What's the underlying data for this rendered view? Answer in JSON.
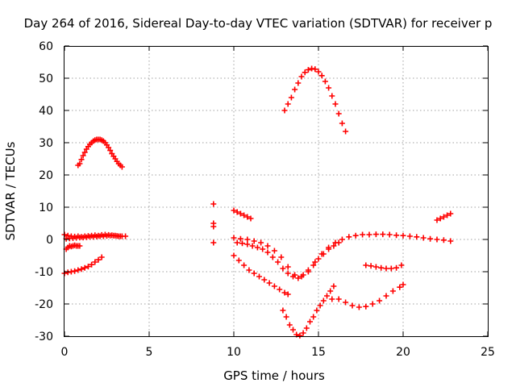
{
  "chart_data": {
    "type": "scatter",
    "title": "Day 264 of 2016, Sidereal Day-to-day VTEC variation (SDTVAR) for receiver p",
    "xlabel": "GPS time / hours",
    "ylabel": "SDTVAR / TECUs",
    "xlim": [
      0,
      25
    ],
    "ylim": [
      -30,
      60
    ],
    "x_ticks": [
      "0",
      "5",
      "10",
      "15",
      "20",
      "25"
    ],
    "y_ticks": [
      "60",
      "50",
      "40",
      "30",
      "20",
      "10",
      "0",
      "-10",
      "-20",
      "-30"
    ],
    "grid": true,
    "legend": "none",
    "marker": "plus",
    "color": "#ff0000",
    "series": [
      {
        "x": [
          0.0,
          0.2,
          0.4,
          0.6,
          0.8,
          1.0,
          1.2,
          1.4,
          1.6,
          1.8,
          2.0,
          2.2,
          2.4,
          2.6,
          2.8,
          3.0,
          3.2,
          3.4,
          3.6,
          0.1,
          0.3,
          0.5,
          0.7,
          0.9,
          1.1,
          1.3,
          1.5,
          1.7,
          1.9,
          2.1,
          2.3,
          2.5,
          2.7,
          2.9,
          3.1,
          3.3
        ],
        "y": [
          1.5,
          1.2,
          1.0,
          0.9,
          1.0,
          0.8,
          1.0,
          1.1,
          1.2,
          1.3,
          1.2,
          1.4,
          1.5,
          1.4,
          1.3,
          1.2,
          1.0,
          1.0,
          1.0,
          0.2,
          0.3,
          0.4,
          0.5,
          0.6,
          0.6,
          0.7,
          0.8,
          0.8,
          0.9,
          1.0,
          1.0,
          1.1,
          1.2,
          1.2,
          1.1,
          1.0
        ]
      },
      {
        "x": [
          0.1,
          0.2,
          0.3,
          0.4,
          0.5,
          0.6,
          0.7,
          0.8,
          0.9
        ],
        "y": [
          -3.0,
          -2.5,
          -2.0,
          -2.2,
          -2.0,
          -1.8,
          -2.0,
          -2.0,
          -2.0
        ]
      },
      {
        "x": [
          0.8,
          0.9,
          1.0,
          1.1,
          1.2,
          1.3,
          1.4,
          1.5,
          1.6,
          1.7,
          1.8,
          1.9,
          2.0,
          2.1,
          2.2,
          2.3,
          2.4,
          2.5,
          2.6,
          2.7,
          2.8,
          2.9,
          3.0,
          3.1,
          3.2,
          3.3,
          3.4
        ],
        "y": [
          23.0,
          23.5,
          24.8,
          26.0,
          27.0,
          28.0,
          28.8,
          29.5,
          30.0,
          30.5,
          30.8,
          31.0,
          31.0,
          31.0,
          30.8,
          30.5,
          30.0,
          29.3,
          28.5,
          27.6,
          26.6,
          25.8,
          25.0,
          24.2,
          23.5,
          23.0,
          22.5
        ]
      },
      {
        "x": [
          0.0,
          0.2,
          0.4,
          0.6,
          0.8,
          1.0,
          1.2,
          1.4,
          1.6,
          1.8,
          2.0,
          2.2
        ],
        "y": [
          -10.5,
          -10.2,
          -10.0,
          -9.8,
          -9.5,
          -9.2,
          -8.8,
          -8.4,
          -7.8,
          -7.0,
          -6.3,
          -5.5
        ]
      },
      {
        "x": [
          8.8,
          8.8,
          8.8,
          8.8
        ],
        "y": [
          11.0,
          5.0,
          4.0,
          -1.0
        ]
      },
      {
        "x": [
          10.0,
          10.2,
          10.4,
          10.6,
          10.8,
          11.0
        ],
        "y": [
          9.0,
          8.5,
          8.0,
          7.5,
          7.0,
          6.5
        ]
      },
      {
        "x": [
          13.0,
          13.2,
          13.4,
          13.6,
          13.8,
          14.0,
          14.2,
          14.4,
          14.6,
          14.8,
          15.0,
          15.2,
          15.4,
          15.6,
          15.8,
          16.0,
          16.2,
          16.4,
          16.6
        ],
        "y": [
          40.0,
          42.0,
          44.0,
          46.5,
          48.5,
          50.5,
          51.8,
          52.6,
          53.0,
          52.8,
          52.0,
          50.8,
          49.0,
          47.0,
          44.5,
          42.0,
          39.0,
          36.0,
          33.5
        ]
      },
      {
        "x": [
          10.0,
          10.4,
          10.8,
          11.2,
          11.6,
          12.0,
          12.4,
          12.8,
          13.2,
          13.6,
          14.0,
          14.4,
          14.8,
          15.2,
          15.6,
          16.0,
          16.4,
          16.8,
          17.2,
          17.6,
          18.0,
          18.4,
          18.8,
          19.2,
          19.6,
          20.0,
          20.4,
          20.8,
          21.2,
          21.6,
          22.0,
          22.4,
          22.8
        ],
        "y": [
          0.5,
          0.2,
          0.0,
          -0.5,
          -1.0,
          -2.0,
          -3.5,
          -5.5,
          -8.5,
          -11.0,
          -11.5,
          -10.0,
          -7.0,
          -4.5,
          -2.5,
          -1.0,
          0.0,
          0.8,
          1.2,
          1.5,
          1.5,
          1.6,
          1.6,
          1.5,
          1.3,
          1.2,
          1.0,
          0.8,
          0.5,
          0.2,
          0.0,
          -0.2,
          -0.5
        ]
      },
      {
        "x": [
          10.2,
          10.5,
          10.8,
          11.1,
          11.4,
          11.7,
          12.0,
          12.3,
          12.6,
          12.9,
          13.2,
          13.5,
          13.8,
          14.1,
          14.4,
          14.7,
          15.0,
          15.3,
          15.6,
          15.9,
          16.2
        ],
        "y": [
          -1.0,
          -1.2,
          -1.5,
          -2.0,
          -2.5,
          -3.0,
          -4.0,
          -5.5,
          -7.0,
          -9.0,
          -10.5,
          -11.5,
          -12.0,
          -11.0,
          -9.5,
          -8.0,
          -6.0,
          -4.5,
          -3.0,
          -2.0,
          -1.0
        ]
      },
      {
        "x": [
          10.0,
          10.3,
          10.6,
          10.9,
          11.2,
          11.5,
          11.8,
          12.1,
          12.4,
          12.7,
          13.0,
          13.2
        ],
        "y": [
          -5.0,
          -6.5,
          -8.0,
          -9.5,
          -10.5,
          -11.5,
          -12.5,
          -13.5,
          -14.5,
          -15.5,
          -16.5,
          -17.0
        ]
      },
      {
        "x": [
          12.9,
          13.1,
          13.3,
          13.5,
          13.7,
          13.9,
          14.1,
          14.3,
          14.5,
          14.7,
          14.9,
          15.1,
          15.3,
          15.5,
          15.7,
          15.9
        ],
        "y": [
          -22.0,
          -24.0,
          -26.5,
          -28.0,
          -29.5,
          -29.8,
          -29.0,
          -27.5,
          -25.5,
          -24.0,
          -22.0,
          -20.5,
          -19.0,
          -17.5,
          -16.0,
          -14.5
        ]
      },
      {
        "x": [
          15.8,
          16.2,
          16.6,
          17.0,
          17.4,
          17.8,
          18.2,
          18.6,
          19.0,
          19.4,
          19.8,
          20.0
        ],
        "y": [
          -18.5,
          -18.5,
          -19.5,
          -20.5,
          -21.0,
          -20.8,
          -20.0,
          -19.0,
          -17.5,
          -16.0,
          -14.8,
          -14.0
        ]
      },
      {
        "x": [
          17.8,
          18.1,
          18.4,
          18.7,
          19.0,
          19.3,
          19.6,
          19.9
        ],
        "y": [
          -8.0,
          -8.2,
          -8.5,
          -8.8,
          -9.0,
          -9.0,
          -8.8,
          -8.0
        ]
      },
      {
        "x": [
          22.0,
          22.2,
          22.4,
          22.6,
          22.8
        ],
        "y": [
          6.0,
          6.5,
          7.0,
          7.5,
          8.0
        ]
      }
    ]
  }
}
